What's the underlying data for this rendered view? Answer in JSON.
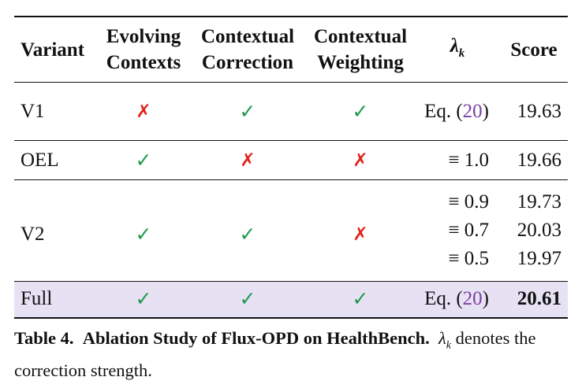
{
  "table": {
    "headers": {
      "variant": "Variant",
      "evolving_line1": "Evolving",
      "evolving_line2": "Contexts",
      "correction_line1": "Contextual",
      "correction_line2": "Correction",
      "weighting_line1": "Contextual",
      "weighting_line2": "Weighting",
      "lambda_symbol": "λ",
      "lambda_sub": "k",
      "score": "Score"
    },
    "marks": {
      "check": "✓",
      "cross": "✗",
      "check_color": "#1e9a4b",
      "cross_color": "#e2231a"
    },
    "rows": {
      "v1": {
        "variant": "V1",
        "evolving": "cross",
        "correction": "check",
        "weighting": "check",
        "lambda_prefix": "Eq. (",
        "lambda_ref": "20",
        "lambda_suffix": ")",
        "score": "19.63"
      },
      "oel": {
        "variant": "OEL",
        "evolving": "check",
        "correction": "cross",
        "weighting": "cross",
        "lambda": "≡ 1.0",
        "score": "19.66"
      },
      "v2": {
        "variant": "V2",
        "evolving": "check",
        "correction": "check",
        "weighting": "cross",
        "sub": [
          {
            "lambda": "≡ 0.9",
            "score": "19.73"
          },
          {
            "lambda": "≡ 0.7",
            "score": "20.03"
          },
          {
            "lambda": "≡ 0.5",
            "score": "19.97"
          }
        ]
      },
      "full": {
        "variant": "Full",
        "evolving": "check",
        "correction": "check",
        "weighting": "check",
        "lambda_prefix": "Eq. (",
        "lambda_ref": "20",
        "lambda_suffix": ")",
        "score": "20.61",
        "highlight_color": "#e7e1f4"
      }
    }
  },
  "caption": {
    "label": "Table 4.",
    "title": "Ablation Study of Flux-OPD on HealthBench.",
    "lambda_symbol": "λ",
    "lambda_sub": "k",
    "text_line1_end": "",
    "text_rest": "denotes the correction strength."
  }
}
